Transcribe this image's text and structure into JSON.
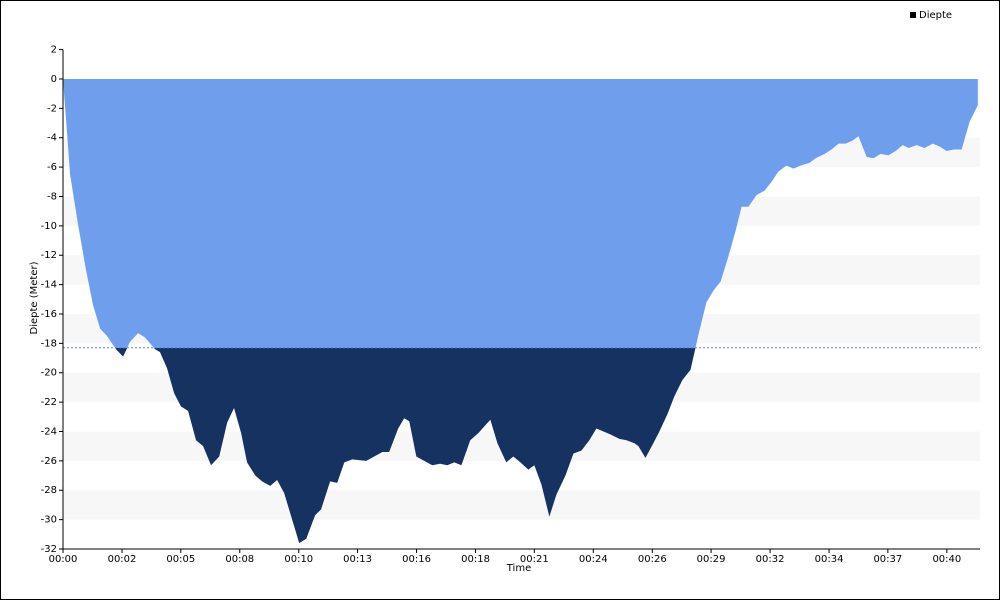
{
  "chart_data": {
    "type": "area",
    "xlabel": "Time",
    "ylabel": "Diepte (Meter)",
    "x": [
      0,
      0.14,
      0.32,
      0.68,
      1.04,
      1.36,
      1.68,
      1.99,
      2.4,
      2.72,
      3.03,
      3.4,
      3.71,
      4.17,
      4.39,
      4.71,
      5.03,
      5.34,
      5.66,
      6.02,
      6.34,
      6.7,
      7.07,
      7.43,
      7.74,
      8.06,
      8.33,
      8.7,
      9.01,
      9.38,
      9.69,
      10.01,
      10.33,
      10.69,
      11.01,
      11.41,
      11.68,
      12.09,
      12.41,
      12.73,
      13.09,
      13.72,
      14.45,
      14.76,
      15.17,
      15.44,
      15.67,
      15.99,
      16.35,
      16.71,
      17.07,
      17.39,
      17.71,
      18.03,
      18.43,
      18.8,
      19.16,
      19.34,
      19.66,
      20.06,
      20.38,
      20.7,
      21.06,
      21.33,
      21.65,
      22.01,
      22.33,
      22.74,
      23.1,
      23.46,
      23.82,
      24.14,
      24.46,
      24.77,
      25.18,
      25.5,
      25.86,
      26.04,
      26.36,
      26.68,
      26.99,
      27.36,
      27.67,
      28.03,
      28.4,
      28.76,
      29.12,
      29.44,
      29.76,
      30.07,
      30.43,
      30.71,
      31.02,
      31.39,
      31.75,
      32.07,
      32.38,
      32.74,
      33.06,
      33.38,
      33.79,
      34.06,
      34.47,
      34.78,
      35.1,
      35.42,
      35.73,
      36,
      36.37,
      36.68,
      37,
      37.36,
      37.68,
      38,
      38.27,
      38.63,
      38.99,
      39.36,
      39.67,
      39.99,
      40.31,
      40.67,
      41.03,
      41.4
    ],
    "series": [
      {
        "name": "Diepte",
        "color": "#6f9fec",
        "below_color": "#163261",
        "values": [
          0,
          -2.8,
          -6.5,
          -9.9,
          -13,
          -15.4,
          -17,
          -17.5,
          -18.4,
          -18.9,
          -17.9,
          -17.3,
          -17.6,
          -18.4,
          -18.6,
          -19.7,
          -21.4,
          -22.3,
          -22.6,
          -24.6,
          -25,
          -26.3,
          -25.7,
          -23.4,
          -22.4,
          -24.1,
          -26.1,
          -27,
          -27.4,
          -27.7,
          -27.3,
          -28.2,
          -29.8,
          -31.6,
          -31.3,
          -29.7,
          -29.3,
          -27.4,
          -27.5,
          -26.1,
          -25.9,
          -26,
          -25.4,
          -25.4,
          -23.8,
          -23.1,
          -23.3,
          -25.7,
          -26,
          -26.3,
          -26.2,
          -26.3,
          -26.1,
          -26.3,
          -24.6,
          -24.1,
          -23.5,
          -23.2,
          -24.8,
          -26.1,
          -25.7,
          -26.1,
          -26.6,
          -26.3,
          -27.6,
          -29.8,
          -28.3,
          -27,
          -25.5,
          -25.3,
          -24.6,
          -23.8,
          -24,
          -24.2,
          -24.5,
          -24.6,
          -24.8,
          -25,
          -25.8,
          -24.9,
          -24,
          -22.8,
          -21.6,
          -20.5,
          -19.8,
          -17.4,
          -15.2,
          -14.4,
          -13.8,
          -12.3,
          -10.4,
          -8.7,
          -8.7,
          -7.9,
          -7.6,
          -7,
          -6.3,
          -5.9,
          -6.1,
          -5.9,
          -5.7,
          -5.4,
          -5.1,
          -4.8,
          -4.4,
          -4.4,
          -4.2,
          -3.9,
          -5.3,
          -5.4,
          -5.1,
          -5.2,
          -4.9,
          -4.5,
          -4.7,
          -4.5,
          -4.7,
          -4.4,
          -4.6,
          -4.9,
          -4.8,
          -4.8,
          -2.9,
          -1.8
        ]
      }
    ],
    "threshold": -18.3,
    "threshold_color": "#6b7ff0",
    "xlim": [
      0,
      41.5
    ],
    "xticks": [
      {
        "value": 0,
        "label": "00:00"
      },
      {
        "value": 2.67,
        "label": "00:02"
      },
      {
        "value": 5.33,
        "label": "00:05"
      },
      {
        "value": 8,
        "label": "00:08"
      },
      {
        "value": 10.67,
        "label": "00:10"
      },
      {
        "value": 13.33,
        "label": "00:13"
      },
      {
        "value": 16,
        "label": "00:16"
      },
      {
        "value": 18.67,
        "label": "00:18"
      },
      {
        "value": 21.33,
        "label": "00:21"
      },
      {
        "value": 24,
        "label": "00:24"
      },
      {
        "value": 26.67,
        "label": "00:26"
      },
      {
        "value": 29.33,
        "label": "00:29"
      },
      {
        "value": 32,
        "label": "00:32"
      },
      {
        "value": 34.67,
        "label": "00:34"
      },
      {
        "value": 37.33,
        "label": "00:37"
      },
      {
        "value": 40,
        "label": "00:40"
      }
    ],
    "ylim": [
      -32,
      2
    ],
    "yticks": [
      -32,
      -30,
      -28,
      -26,
      -24,
      -22,
      -20,
      -18,
      -16,
      -14,
      -12,
      -10,
      -8,
      -6,
      -4,
      -2,
      0,
      2
    ],
    "grid": true,
    "legend": "top-right"
  }
}
